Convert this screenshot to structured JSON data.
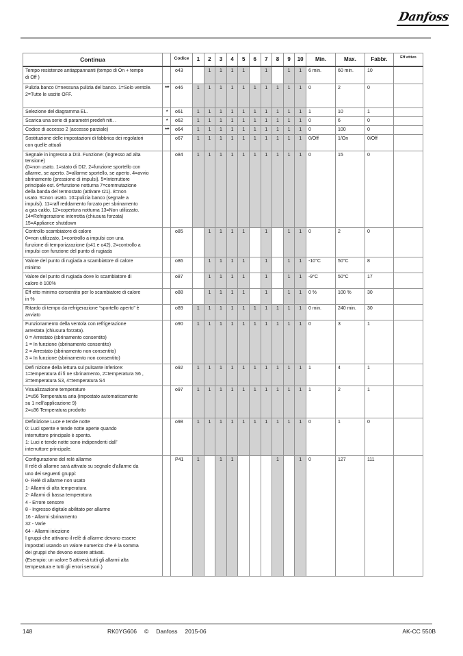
{
  "logo": {
    "text": "Danfoss"
  },
  "colors": {
    "cell_shading": "#d2d2d2",
    "rule_gray": "#b5b5b5"
  },
  "table": {
    "headers": {
      "continua": "Continua",
      "codice": "Codice",
      "cols": [
        "1",
        "2",
        "3",
        "4",
        "5",
        "6",
        "7",
        "8",
        "9",
        "10"
      ],
      "min": "Min.",
      "max": "Max.",
      "fabbr": "Fabbr.",
      "eff": "Eff ettivo"
    },
    "rows": [
      {
        "codice": "o43",
        "marker": "",
        "desc": "Tempo resistenze antiappannanti (tempo di On + tempo\ndi Off )",
        "cols": [
          "",
          "1",
          "1",
          "1",
          "1",
          "",
          "1",
          "",
          "1",
          "1"
        ],
        "min": "6 min.",
        "max": "60 min.",
        "fabbr": "10",
        "eff": ""
      },
      {
        "codice": "o46",
        "marker": "***",
        "desc": "Pulizia banco 0=nessuna pulizia del banco. 1=Solo ventole.\n2=Tutte le uscite OFF.",
        "cols": [
          "1",
          "1",
          "1",
          "1",
          "1",
          "1",
          "1",
          "1",
          "1",
          "1"
        ],
        "min": "0",
        "max": "2",
        "fabbr": "0",
        "eff": ""
      },
      {
        "codice": "o61",
        "marker": "*",
        "desc": "Selezione del diagramma EL.",
        "cols": [
          "1",
          "1",
          "1",
          "1",
          "1",
          "1",
          "1",
          "1",
          "1",
          "1"
        ],
        "min": "1",
        "max": "10",
        "fabbr": "1",
        "eff": ""
      },
      {
        "codice": "o62",
        "marker": "*",
        "desc": "Scarica una serie di parametri predefi niti. .",
        "cols": [
          "1",
          "1",
          "1",
          "1",
          "1",
          "1",
          "1",
          "1",
          "1",
          "1"
        ],
        "min": "0",
        "max": "6",
        "fabbr": "0",
        "eff": ""
      },
      {
        "codice": "o64",
        "marker": "***",
        "desc": "Codice di accesso 2 (accesso parziale)",
        "cols": [
          "1",
          "1",
          "1",
          "1",
          "1",
          "1",
          "1",
          "1",
          "1",
          "1"
        ],
        "min": "0",
        "max": "100",
        "fabbr": "0",
        "eff": ""
      },
      {
        "codice": "o67",
        "marker": "",
        "desc": "Sostituzione delle impostazioni di fabbrica dei regolatori\ncon quelle attuali",
        "cols": [
          "1",
          "1",
          "1",
          "1",
          "1",
          "1",
          "1",
          "1",
          "1",
          "1"
        ],
        "min": "0/Off",
        "max": "1/On",
        "fabbr": "0/Off",
        "eff": ""
      },
      {
        "codice": "o84",
        "marker": "",
        "desc": "Segnale in ingresso a DI3. Funzione: (ingresso ad alta\ntensione)\n(0=non usato. 1=stato di DI2. 2=funzione sportello con\nallarme, se aperto. 3=allarme sportello, se aperto. 4=avvio\nsbrinamento (pressione di impulsi). 5=Interruttore\nprincipale est. 6=funzione notturna 7=commutazione\ndella banda del termostato (attivare r21). 8=non\nusato. 9=non usato. 10=pulizia banco (segnale a\nimpulsi). 11=raff reddamento forzato per sbrinamento\na gas caldo, 12=copertura notturna 13=Non utilizzato.\n14=Refrigerazione interrotta (chiusura forzata)\n15=Appliance shutdown",
        "cols": [
          "1",
          "1",
          "1",
          "1",
          "1",
          "1",
          "1",
          "1",
          "1",
          "1"
        ],
        "min": "0",
        "max": "15",
        "fabbr": "0",
        "eff": ""
      },
      {
        "codice": "o85",
        "marker": "",
        "desc": "Controllo scambiatore di calore\n0=non utilizzato, 1=controllo a impulsi con una\nfunzione di temporizzazione (o41 e o42), 2=controllo a\nimpulsi con funzione del punto di rugiada",
        "cols": [
          "",
          "1",
          "1",
          "1",
          "1",
          "",
          "1",
          "",
          "1",
          "1"
        ],
        "min": "0",
        "max": "2",
        "fabbr": "0",
        "eff": ""
      },
      {
        "codice": "o86",
        "marker": "",
        "desc": "Valore del punto di rugiada a scambiatore di calore\nminimo",
        "cols": [
          "",
          "1",
          "1",
          "1",
          "1",
          "",
          "1",
          "",
          "1",
          "1"
        ],
        "min": "-10°C",
        "max": "50°C",
        "fabbr": "8",
        "eff": ""
      },
      {
        "codice": "o87",
        "marker": "",
        "desc": "Valore del punto di rugiada dove lo scambiatore di\ncalore è 100%",
        "cols": [
          "",
          "1",
          "1",
          "1",
          "1",
          "",
          "1",
          "",
          "1",
          "1"
        ],
        "min": "-9°C",
        "max": "50°C",
        "fabbr": "17",
        "eff": ""
      },
      {
        "codice": "o88",
        "marker": "",
        "desc": "Eff etto minimo consentito per lo scambiatore di calore\nin %",
        "cols": [
          "",
          "1",
          "1",
          "1",
          "1",
          "",
          "1",
          "",
          "1",
          "1"
        ],
        "min": "0 %",
        "max": "100 %",
        "fabbr": "30",
        "eff": ""
      },
      {
        "codice": "o89",
        "marker": "",
        "desc": "Ritardo di tempo da refrigerazione “sportello aperto” è\navviato",
        "cols": [
          "1",
          "1",
          "1",
          "1",
          "1",
          "1",
          "1",
          "1",
          "1",
          "1"
        ],
        "min": "0 min.",
        "max": "240 min.",
        "fabbr": "30",
        "eff": ""
      },
      {
        "codice": "o90",
        "marker": "",
        "desc": "Funzionamento della ventola con refrigerazione\narrestata (chiusura forzata).\n0 = Arrestato (sbrinamento consentito)\n1 = In funzione (sbrinamento consentito)\n2 = Arrestato (sbrinamento non consentito)\n3 = In funzione (sbrinamento non consentito)",
        "cols": [
          "1",
          "1",
          "1",
          "1",
          "1",
          "1",
          "1",
          "1",
          "1",
          "1"
        ],
        "min": "0",
        "max": "3",
        "fabbr": "1",
        "eff": ""
      },
      {
        "codice": "o92",
        "marker": "",
        "desc": "Defi nizione della lettura sul pulsante inferiore:\n1=temperatura di fi ne sbrinamento, 2=temperatura S6 ,\n3=temperatura S3, 4=temperatura S4",
        "cols": [
          "1",
          "1",
          "1",
          "1",
          "1",
          "1",
          "1",
          "1",
          "1",
          "1"
        ],
        "min": "1",
        "max": "4",
        "fabbr": "1",
        "eff": ""
      },
      {
        "codice": "o97",
        "marker": "",
        "desc": "Visualizzazione temperature\n1=u56 Temperatura aria (impostato automaticamente\nsu 1 nell’applicazione 9)\n2=u36 Temperatura prodotto",
        "cols": [
          "1",
          "1",
          "1",
          "1",
          "1",
          "1",
          "1",
          "1",
          "1",
          "1"
        ],
        "min": "1",
        "max": "2",
        "fabbr": "1",
        "eff": ""
      },
      {
        "codice": "o98",
        "marker": "",
        "desc": "Definizione Luce e tende notte\n0: Luci spente e tende notte aperte quando\ninterruttore principale è spento.\n1: Luci e tende notte sono indipendenti dall’\ninterruttore principale.",
        "cols": [
          "1",
          "1",
          "1",
          "1",
          "1",
          "1",
          "1",
          "1",
          "1",
          "1"
        ],
        "min": "0",
        "max": "1",
        "fabbr": "0",
        "eff": ""
      },
      {
        "codice": "P41",
        "marker": "",
        "desc": "Configurazione del relè allarme\nIl relè di allarme sarà attivato su segnale d’allarme da\nuno dei seguenti gruppi:\n0- Relè di allarme non usato\n1- Allarmi di alta temperatura\n2- Allarmi di bassa temperatura\n4 - Errore sensore\n8 - Ingresso digitale abilitato per allarme\n16 - Allarmi sbrinamento\n32 - Varie\n64 - Allarmi iniezione\nI gruppi che attivano il relè di allarme devono essere\nimpostati usando un valore numerico che è la somma\ndei gruppi che devono essere attivati.\n(Esempio: un valore 5 attiverà tutti gli allarmi alta\ntemperatura e tutti gli errori sensori.)",
        "cols": [
          "1",
          "",
          "1",
          "1",
          "",
          "",
          "",
          "1",
          "",
          "1"
        ],
        "min": "0",
        "max": "127",
        "fabbr": "111",
        "eff": ""
      }
    ]
  },
  "footer": {
    "page": "148",
    "doc": "RK0YG606",
    "copyright": "©",
    "brand": "Danfoss",
    "date": "2015-06",
    "product": "AK-CC 550B"
  }
}
